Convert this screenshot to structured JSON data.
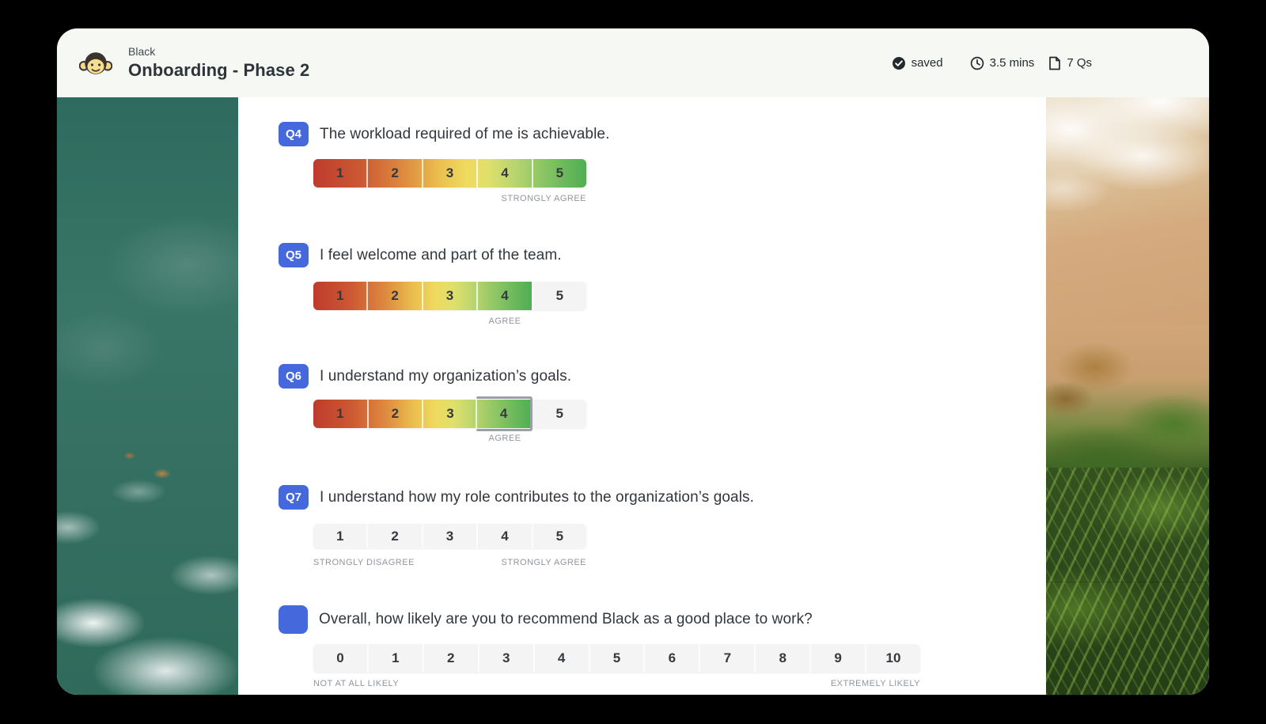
{
  "header": {
    "brand": "Black",
    "title": "Onboarding - Phase 2",
    "meta": {
      "saved_label": "saved",
      "time_label": "3.5 mins",
      "count_label": "7 Qs"
    }
  },
  "questions": [
    {
      "id": "Q4",
      "text": "The workload required of me is achievable.",
      "scale": {
        "values": [
          "1",
          "2",
          "3",
          "4",
          "5"
        ],
        "filled_count": 5,
        "selected_value": "5",
        "selected_label": "STRONGLY AGREE"
      }
    },
    {
      "id": "Q5",
      "text": "I feel welcome and part of the team.",
      "scale": {
        "values": [
          "1",
          "2",
          "3",
          "4",
          "5"
        ],
        "filled_count": 4,
        "selected_value": "4",
        "selected_label": "AGREE"
      }
    },
    {
      "id": "Q6",
      "text": "I understand my organization’s goals.",
      "scale": {
        "values": [
          "1",
          "2",
          "3",
          "4",
          "5"
        ],
        "filled_count": 4,
        "selected_value": "4",
        "selected_label": "AGREE",
        "highlight_index": 3
      }
    },
    {
      "id": "Q7",
      "text": "I understand how my role contributes to the organization’s goals.",
      "scale": {
        "values": [
          "1",
          "2",
          "3",
          "4",
          "5"
        ],
        "filled_count": 0,
        "left_label": "STRONGLY DISAGREE",
        "right_label": "STRONGLY AGREE"
      }
    },
    {
      "id": "",
      "text": "Overall, how likely are you to recommend Black as a good place to work?",
      "scale": {
        "values": [
          "0",
          "1",
          "2",
          "3",
          "4",
          "5",
          "6",
          "7",
          "8",
          "9",
          "10"
        ],
        "filled_count": 0,
        "left_label": "NOT AT ALL LIKELY",
        "right_label": "EXTREMELY LIKELY"
      }
    }
  ],
  "colors": {
    "badge_blue": "#4569dd",
    "header_bg": "#f5f8f3",
    "scale_gradient_start": "#bf3b2d",
    "scale_gradient_end": "#4fae53",
    "scale_unfilled": "#f4f4f5",
    "label_gray": "#8f969c"
  }
}
